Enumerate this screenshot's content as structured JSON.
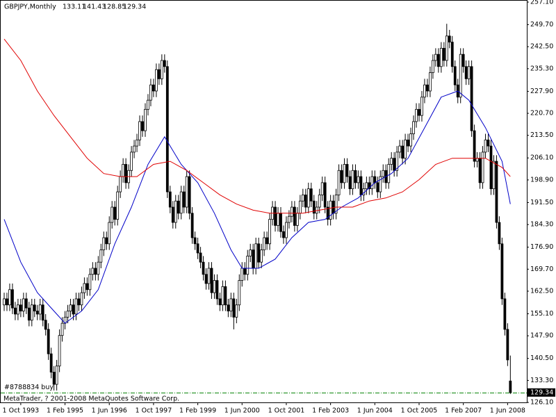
{
  "chart_data": {
    "type": "candlestick",
    "title": "GBPJPY,Monthly",
    "footer": "MetaTrader, ? 2001-2008 MetaQuotes Software Corp.",
    "order": {
      "label": "#8788834 buy",
      "price": 129.2,
      "color": "#008000"
    },
    "ylim": [
      126.1,
      257.1
    ],
    "yticks": [
      {
        "value": 257.1,
        "label": "257.10"
      },
      {
        "value": 249.7,
        "label": "249.70"
      },
      {
        "value": 242.5,
        "label": "242.50"
      },
      {
        "value": 235.3,
        "label": "235.30"
      },
      {
        "value": 227.9,
        "label": "227.90"
      },
      {
        "value": 220.7,
        "label": "220.70"
      },
      {
        "value": 213.5,
        "label": "213.50"
      },
      {
        "value": 206.1,
        "label": "206.10"
      },
      {
        "value": 198.9,
        "label": "198.90"
      },
      {
        "value": 191.5,
        "label": "191.50"
      },
      {
        "value": 184.3,
        "label": "184.30"
      },
      {
        "value": 176.9,
        "label": "176.90"
      },
      {
        "value": 169.7,
        "label": "169.70"
      },
      {
        "value": 162.5,
        "label": "162.50"
      },
      {
        "value": 155.1,
        "label": "155.10"
      },
      {
        "value": 147.9,
        "label": "147.90"
      },
      {
        "value": 140.5,
        "label": "140.50"
      },
      {
        "value": 133.3,
        "label": "133.30"
      },
      {
        "value": 126.1,
        "label": "126.10"
      }
    ],
    "categories": [
      null,
      null,
      null,
      null,
      null,
      null,
      "1 Oct 1993",
      null,
      null,
      null,
      null,
      null,
      null,
      null,
      null,
      null,
      null,
      null,
      null,
      null,
      null,
      null,
      "1 Feb 1995",
      null,
      null,
      null,
      null,
      null,
      null,
      null,
      null,
      null,
      null,
      null,
      null,
      null,
      null,
      null,
      "1 Jun 1996",
      null,
      null,
      null,
      null,
      null,
      null,
      null,
      null,
      null,
      null,
      null,
      null,
      null,
      null,
      null,
      "1 Oct 1997",
      null,
      null,
      null,
      null,
      null,
      null,
      null,
      null,
      null,
      null,
      null,
      null,
      null,
      null,
      null,
      "1 Feb 1999",
      null,
      null,
      null,
      null,
      null,
      null,
      null,
      null,
      null,
      null,
      null,
      null,
      null,
      null,
      null,
      "1 Jun 2000",
      null,
      null,
      null,
      null,
      null,
      null,
      null,
      null,
      null,
      null,
      null,
      null,
      null,
      null,
      null,
      "1 Oct 2001",
      null,
      null,
      null,
      null,
      null,
      null,
      null,
      null,
      null,
      null,
      null,
      null,
      null,
      null,
      null,
      "1 Feb 2003",
      null,
      null,
      null,
      null,
      null,
      null,
      null,
      null,
      null,
      null,
      null,
      null,
      null,
      null,
      null,
      "1 Jun 2004",
      null,
      null,
      null,
      null,
      null,
      null,
      null,
      null,
      null,
      null,
      null,
      null,
      null,
      null,
      null,
      "1 Oct 2005",
      null,
      null,
      null,
      null,
      null,
      null,
      null,
      null,
      null,
      null,
      null,
      null,
      null,
      null,
      null,
      "1 Feb 2007",
      null,
      null,
      null,
      null,
      null,
      null,
      null,
      null,
      null,
      null,
      null,
      null,
      null,
      null,
      null,
      "1 Jun 2008",
      null
    ],
    "open": [
      158,
      160,
      158,
      163,
      157,
      155,
      158,
      156,
      160,
      157,
      153,
      158,
      156,
      155,
      158,
      153,
      150,
      142,
      136,
      132,
      138,
      148,
      152,
      154,
      156,
      158,
      155,
      160,
      158,
      162,
      165,
      163,
      168,
      170,
      168,
      172,
      176,
      180,
      178,
      185,
      190,
      186,
      195,
      200,
      204,
      198,
      202,
      208,
      210,
      212,
      218,
      215,
      222,
      225,
      230,
      228,
      235,
      232,
      238,
      236,
      195,
      190,
      185,
      192,
      188,
      195,
      190,
      200,
      188,
      180,
      178,
      175,
      172,
      168,
      165,
      170,
      162,
      166,
      160,
      158,
      164,
      158,
      156,
      160,
      154,
      158,
      166,
      170,
      168,
      174,
      176,
      170,
      178,
      172,
      176,
      180,
      178,
      186,
      190,
      184,
      188,
      182,
      180,
      185,
      187,
      190,
      184,
      188,
      192,
      194,
      190,
      196,
      192,
      188,
      190,
      194,
      198,
      190,
      186,
      192,
      188,
      194,
      202,
      198,
      204,
      200,
      196,
      202,
      198,
      200,
      194,
      196,
      198,
      196,
      200,
      198,
      195,
      200,
      202,
      198,
      204,
      206,
      202,
      208,
      210,
      206,
      212,
      210,
      214,
      218,
      222,
      220,
      226,
      230,
      228,
      234,
      238,
      240,
      236,
      242,
      238,
      246,
      244,
      236,
      230,
      226,
      240,
      236,
      232,
      236,
      215,
      205,
      206,
      198,
      208,
      212,
      210,
      196,
      205,
      185,
      178,
      160,
      150,
      133.11
    ],
    "high": [
      162,
      162,
      165,
      165,
      159,
      160,
      160,
      162,
      162,
      159,
      160,
      160,
      158,
      160,
      160,
      155,
      152,
      144,
      138,
      140,
      150,
      154,
      156,
      158,
      160,
      160,
      162,
      162,
      164,
      167,
      167,
      170,
      172,
      172,
      174,
      178,
      182,
      182,
      187,
      192,
      192,
      197,
      202,
      206,
      206,
      204,
      210,
      212,
      214,
      220,
      220,
      224,
      227,
      232,
      232,
      237,
      237,
      240,
      240,
      238,
      197,
      192,
      194,
      194,
      197,
      197,
      202,
      202,
      190,
      182,
      180,
      177,
      174,
      170,
      172,
      172,
      168,
      168,
      162,
      166,
      166,
      160,
      162,
      162,
      160,
      168,
      172,
      172,
      176,
      178,
      178,
      180,
      180,
      178,
      182,
      182,
      188,
      192,
      192,
      190,
      190,
      184,
      187,
      189,
      192,
      192,
      190,
      194,
      196,
      196,
      198,
      198,
      194,
      192,
      196,
      200,
      200,
      192,
      194,
      194,
      196,
      204,
      204,
      206,
      206,
      202,
      204,
      204,
      202,
      202,
      198,
      200,
      200,
      202,
      202,
      200,
      202,
      204,
      204,
      206,
      208,
      208,
      210,
      212,
      212,
      214,
      214,
      216,
      220,
      224,
      224,
      228,
      232,
      232,
      236,
      240,
      242,
      242,
      244,
      244,
      250,
      248,
      246,
      238,
      232,
      242,
      242,
      238,
      238,
      238,
      217,
      208,
      208,
      210,
      214,
      214,
      212,
      207,
      207,
      187,
      180,
      162,
      152,
      141.43
    ],
    "low": [
      156,
      156,
      156,
      155,
      153,
      153,
      154,
      154,
      155,
      151,
      151,
      154,
      153,
      153,
      151,
      148,
      140,
      134,
      130,
      130,
      136,
      146,
      150,
      152,
      154,
      153,
      153,
      156,
      156,
      160,
      161,
      161,
      166,
      166,
      166,
      170,
      174,
      176,
      176,
      183,
      184,
      184,
      193,
      198,
      196,
      196,
      200,
      206,
      208,
      210,
      213,
      213,
      220,
      223,
      226,
      226,
      230,
      230,
      234,
      193,
      188,
      183,
      183,
      186,
      186,
      188,
      188,
      186,
      178,
      176,
      173,
      170,
      166,
      163,
      163,
      160,
      160,
      158,
      156,
      156,
      156,
      154,
      154,
      150,
      152,
      156,
      164,
      166,
      166,
      172,
      168,
      168,
      170,
      170,
      174,
      176,
      176,
      184,
      182,
      182,
      180,
      178,
      178,
      183,
      185,
      182,
      182,
      186,
      190,
      188,
      188,
      190,
      186,
      186,
      188,
      192,
      188,
      184,
      184,
      186,
      186,
      192,
      196,
      196,
      198,
      194,
      194,
      196,
      196,
      192,
      192,
      194,
      194,
      194,
      196,
      193,
      193,
      198,
      196,
      196,
      202,
      200,
      200,
      206,
      204,
      204,
      208,
      208,
      212,
      216,
      218,
      218,
      224,
      226,
      226,
      232,
      236,
      234,
      234,
      236,
      236,
      242,
      234,
      228,
      224,
      224,
      234,
      230,
      230,
      213,
      203,
      203,
      196,
      196,
      206,
      208,
      194,
      194,
      183,
      176,
      158,
      148,
      138,
      128.85
    ],
    "close": [
      160,
      158,
      163,
      157,
      155,
      158,
      156,
      160,
      157,
      153,
      158,
      156,
      155,
      158,
      153,
      150,
      142,
      136,
      132,
      138,
      148,
      152,
      154,
      156,
      158,
      155,
      160,
      158,
      162,
      165,
      163,
      168,
      170,
      168,
      172,
      176,
      180,
      178,
      185,
      190,
      186,
      195,
      200,
      204,
      198,
      202,
      208,
      210,
      212,
      218,
      215,
      222,
      225,
      230,
      228,
      235,
      232,
      238,
      236,
      195,
      190,
      185,
      192,
      188,
      195,
      190,
      200,
      188,
      180,
      178,
      175,
      172,
      168,
      165,
      170,
      162,
      166,
      160,
      158,
      164,
      158,
      156,
      160,
      154,
      158,
      166,
      170,
      168,
      174,
      176,
      170,
      178,
      172,
      176,
      180,
      178,
      186,
      190,
      184,
      188,
      182,
      180,
      185,
      187,
      190,
      184,
      188,
      192,
      194,
      190,
      196,
      192,
      188,
      190,
      194,
      198,
      190,
      186,
      192,
      188,
      194,
      202,
      198,
      204,
      200,
      196,
      202,
      198,
      200,
      194,
      196,
      198,
      196,
      200,
      198,
      195,
      200,
      202,
      198,
      204,
      206,
      202,
      208,
      210,
      206,
      212,
      210,
      214,
      218,
      222,
      220,
      226,
      230,
      228,
      234,
      238,
      240,
      236,
      242,
      238,
      246,
      244,
      236,
      230,
      226,
      240,
      236,
      232,
      236,
      215,
      205,
      206,
      198,
      208,
      212,
      210,
      196,
      205,
      185,
      178,
      160,
      150,
      140,
      129.34
    ],
    "series": [
      {
        "color": "#0000c8",
        "x": [
          0,
          6,
          12,
          18,
          22,
          28,
          34,
          40,
          46,
          52,
          58,
          64,
          70,
          76,
          82,
          86,
          92,
          98,
          104,
          110,
          116,
          122,
          128,
          134,
          140,
          146,
          152,
          158,
          164,
          168,
          174,
          180,
          183
        ],
        "values": [
          186,
          172,
          162,
          156,
          152,
          156,
          163,
          178,
          190,
          204,
          213,
          204,
          198,
          188,
          176,
          170,
          170,
          173,
          180,
          185,
          186,
          190,
          193,
          198,
          201,
          206,
          216,
          226,
          228,
          225,
          216,
          205,
          191
        ]
      },
      {
        "color": "#e00000",
        "x": [
          0,
          6,
          12,
          18,
          24,
          30,
          36,
          42,
          48,
          54,
          60,
          66,
          72,
          78,
          84,
          90,
          96,
          102,
          108,
          114,
          120,
          126,
          132,
          138,
          144,
          150,
          156,
          162,
          168,
          174,
          180,
          183
        ],
        "values": [
          245,
          238,
          228,
          220,
          213,
          206,
          201,
          200,
          200,
          204,
          205,
          202,
          198,
          194,
          191,
          189,
          188,
          188,
          188,
          189,
          190,
          190,
          192,
          193,
          195,
          199,
          204,
          206,
          206,
          206,
          203,
          200
        ]
      }
    ]
  }
}
